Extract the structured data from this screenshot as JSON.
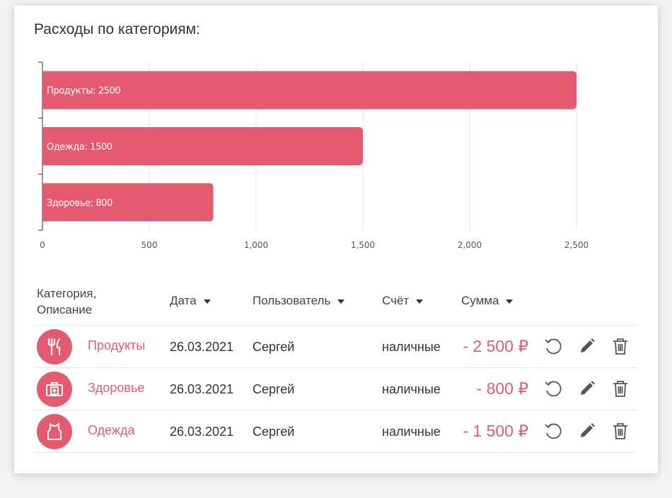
{
  "title": "Расходы по категориям:",
  "chart_data": {
    "type": "bar",
    "orientation": "horizontal",
    "categories": [
      "Продукты",
      "Одежда",
      "Здоровье"
    ],
    "values": [
      2500,
      1500,
      800
    ],
    "bar_labels": [
      "Продукты: 2500",
      "Одежда: 1500",
      "Здоровье: 800"
    ],
    "xlim": [
      0,
      2500
    ],
    "xticks": [
      0,
      500,
      1000,
      1500,
      2000,
      2500
    ],
    "xtick_labels": [
      "0",
      "500",
      "1,000",
      "1,500",
      "2,000",
      "2,500"
    ],
    "grid": true,
    "bar_color": "#e45b6f"
  },
  "table": {
    "headers": {
      "category": "Категория, Описание",
      "date": "Дата",
      "user": "Пользователь",
      "account": "Счёт",
      "sum": "Сумма"
    },
    "rows": [
      {
        "icon": "fork-knife-icon",
        "category": "Продукты",
        "date": "26.03.2021",
        "user": "Сергей",
        "account": "наличные",
        "sum": "- 2 500 ₽"
      },
      {
        "icon": "first-aid-kit-icon",
        "category": "Здоровье",
        "date": "26.03.2021",
        "user": "Сергей",
        "account": "наличные",
        "sum": "- 800 ₽"
      },
      {
        "icon": "tank-top-icon",
        "category": "Одежда",
        "date": "26.03.2021",
        "user": "Сергей",
        "account": "наличные",
        "sum": "- 1 500 ₽"
      }
    ]
  },
  "colors": {
    "accent": "#e45b6f",
    "text": "#333333",
    "icon": "#555555"
  }
}
